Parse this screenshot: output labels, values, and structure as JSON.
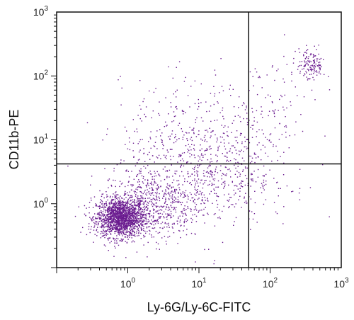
{
  "chart_data": {
    "type": "scatter",
    "title": "",
    "xlabel": "Ly-6G/Ly-6C-FITC",
    "ylabel": "CD11b-PE",
    "x_scale": "log",
    "y_scale": "log",
    "xlim": [
      0.1,
      1000
    ],
    "ylim": [
      0.1,
      1000
    ],
    "x_ticks": [
      {
        "base": "10",
        "exp": "0",
        "value": 1
      },
      {
        "base": "10",
        "exp": "1",
        "value": 10
      },
      {
        "base": "10",
        "exp": "2",
        "value": 100
      },
      {
        "base": "10",
        "exp": "3",
        "value": 1000
      }
    ],
    "y_ticks": [
      {
        "base": "10",
        "exp": "0",
        "value": 1
      },
      {
        "base": "10",
        "exp": "1",
        "value": 10
      },
      {
        "base": "10",
        "exp": "2",
        "value": 100
      },
      {
        "base": "10",
        "exp": "3",
        "value": 1000
      }
    ],
    "quadrant_gates": {
      "x": 50,
      "y": 4.2
    },
    "grid": false,
    "marker_color": "#6a1b8f",
    "populations": [
      {
        "center": [
          0.8,
          0.6
        ],
        "spread": [
          0.17,
          0.15
        ],
        "count": 1700
      },
      {
        "center": [
          2.2,
          1.0
        ],
        "spread": [
          0.35,
          0.28
        ],
        "count": 600
      },
      {
        "center": [
          8.0,
          6.0
        ],
        "spread": [
          0.5,
          0.55
        ],
        "count": 550
      },
      {
        "center": [
          25,
          2.5
        ],
        "spread": [
          0.45,
          0.35
        ],
        "count": 260
      },
      {
        "center": [
          90,
          25
        ],
        "spread": [
          0.3,
          0.45
        ],
        "count": 120
      },
      {
        "center": [
          380,
          150
        ],
        "spread": [
          0.1,
          0.13
        ],
        "count": 140
      }
    ]
  }
}
